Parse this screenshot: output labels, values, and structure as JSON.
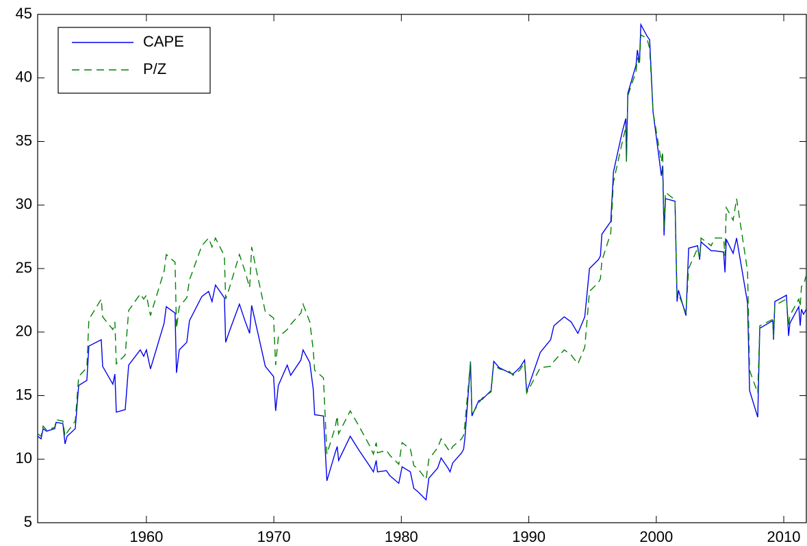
{
  "chart_data": {
    "type": "line",
    "x": [
      1951.47,
      1951.74,
      1951.9,
      1952.17,
      1952.81,
      1952.92,
      1953.45,
      1953.62,
      1953.78,
      1954.42,
      1954.69,
      1955.33,
      1955.49,
      1956.46,
      1956.57,
      1957.37,
      1957.53,
      1957.64,
      1958.34,
      1958.61,
      1959.52,
      1959.79,
      1960.0,
      1960.32,
      1961.39,
      1961.56,
      1962.25,
      1962.36,
      1962.58,
      1963.17,
      1963.38,
      1964.35,
      1964.88,
      1965.15,
      1965.42,
      1966.12,
      1966.22,
      1966.49,
      1967.3,
      1967.73,
      1968.1,
      1968.26,
      1968.64,
      1969.33,
      1969.98,
      1970.14,
      1970.35,
      1971.05,
      1971.32,
      1972.12,
      1972.29,
      1972.82,
      1973.09,
      1973.2,
      1973.89,
      1974.16,
      1974.81,
      1974.97,
      1975.08,
      1975.99,
      1976.68,
      1977.49,
      1977.81,
      1978.03,
      1978.13,
      1978.83,
      1979.1,
      1979.8,
      1980.06,
      1980.71,
      1980.98,
      1981.35,
      1981.94,
      1982.16,
      1982.85,
      1983.12,
      1983.66,
      1983.82,
      1984.03,
      1984.73,
      1984.89,
      1985.0,
      1985.43,
      1985.54,
      1986.07,
      1986.34,
      1987.04,
      1987.25,
      1987.68,
      1988.49,
      1988.76,
      1989.29,
      1989.67,
      1989.83,
      1990.9,
      1991.71,
      1991.97,
      1992.78,
      1993.32,
      1993.85,
      1994.39,
      1994.76,
      1995.46,
      1995.62,
      1995.73,
      1996.43,
      1996.64,
      1997.34,
      1997.61,
      1997.66,
      1997.77,
      1998.41,
      1998.52,
      1998.68,
      1998.79,
      1999.27,
      1999.48,
      1999.75,
      2000.4,
      2000.5,
      2000.61,
      2000.72,
      2001.47,
      2001.63,
      2001.74,
      2002.33,
      2002.54,
      2003.24,
      2003.4,
      2003.51,
      2004.31,
      2004.58,
      2005.28,
      2005.39,
      2005.49,
      2006.03,
      2006.3,
      2007.16,
      2007.32,
      2007.96,
      2008.12,
      2009.14,
      2009.2,
      2009.3,
      2010.21,
      2010.38,
      2010.48,
      2011.18,
      2011.29,
      2011.39,
      2011.55,
      2011.77
    ],
    "series": [
      {
        "name": "CAPE",
        "color": "#0000ee",
        "dash": false,
        "values": [
          11.8,
          11.6,
          12.4,
          12.2,
          12.4,
          12.9,
          12.8,
          11.2,
          11.8,
          12.4,
          15.8,
          16.2,
          18.9,
          19.4,
          17.3,
          15.9,
          16.7,
          13.7,
          13.9,
          17.4,
          18.6,
          18.1,
          18.6,
          17.1,
          20.7,
          22.0,
          21.5,
          16.8,
          18.6,
          19.2,
          20.9,
          22.8,
          23.2,
          22.4,
          23.7,
          22.7,
          19.2,
          20.0,
          22.2,
          20.9,
          19.9,
          22.1,
          20.4,
          17.3,
          16.5,
          13.8,
          15.8,
          17.4,
          16.6,
          17.8,
          18.6,
          17.6,
          15.5,
          13.5,
          13.4,
          8.3,
          10.5,
          11.0,
          9.9,
          11.8,
          10.7,
          9.5,
          9.0,
          9.9,
          9.0,
          9.1,
          8.7,
          8.1,
          9.4,
          9.0,
          7.7,
          7.4,
          6.8,
          8.5,
          9.3,
          10.1,
          9.3,
          9.0,
          9.7,
          10.5,
          10.8,
          11.8,
          17.6,
          13.4,
          14.6,
          14.7,
          15.4,
          17.7,
          17.2,
          16.8,
          16.7,
          17.2,
          17.8,
          15.3,
          18.4,
          19.4,
          20.5,
          21.2,
          20.8,
          19.9,
          21.2,
          25.0,
          25.7,
          26.0,
          27.7,
          28.7,
          32.6,
          35.8,
          36.8,
          33.5,
          38.8,
          41.0,
          42.2,
          41.2,
          44.2,
          43.3,
          43.0,
          37.3,
          32.3,
          33.1,
          27.6,
          30.5,
          30.3,
          22.4,
          23.3,
          21.3,
          26.6,
          26.8,
          25.7,
          27.1,
          26.4,
          26.4,
          26.3,
          24.7,
          27.3,
          26.2,
          27.4,
          22.3,
          15.4,
          13.3,
          20.3,
          20.9,
          19.4,
          22.4,
          22.9,
          19.7,
          20.7,
          22.0,
          20.5,
          21.8,
          21.4,
          21.8
        ]
      },
      {
        "name": "P/Z",
        "color": "#007f00",
        "dash": true,
        "values": [
          12.0,
          11.8,
          12.6,
          12.3,
          12.5,
          13.1,
          13.0,
          11.8,
          12.1,
          13.0,
          16.5,
          17.2,
          21.0,
          22.6,
          21.2,
          20.2,
          20.8,
          17.5,
          18.2,
          21.7,
          23.0,
          22.6,
          22.9,
          21.3,
          24.8,
          26.1,
          25.5,
          20.3,
          22.0,
          22.7,
          24.1,
          26.8,
          27.4,
          26.7,
          27.4,
          26.0,
          22.6,
          23.4,
          26.1,
          24.8,
          23.5,
          26.7,
          24.8,
          21.6,
          21.1,
          17.4,
          19.6,
          20.2,
          20.6,
          21.5,
          22.2,
          20.8,
          18.6,
          17.0,
          16.4,
          10.4,
          12.5,
          13.4,
          12.0,
          13.8,
          12.6,
          11.1,
          10.4,
          11.3,
          10.5,
          10.7,
          10.3,
          9.6,
          11.3,
          10.8,
          9.5,
          9.2,
          8.4,
          10.0,
          10.9,
          11.6,
          10.8,
          10.6,
          11.0,
          11.6,
          11.9,
          12.9,
          17.7,
          13.5,
          14.4,
          14.8,
          15.3,
          17.5,
          17.1,
          16.9,
          16.6,
          17.0,
          17.6,
          15.2,
          17.2,
          17.3,
          17.7,
          18.6,
          18.2,
          17.5,
          18.8,
          23.2,
          23.9,
          24.2,
          25.6,
          27.8,
          31.8,
          35.0,
          36.1,
          33.4,
          38.6,
          40.5,
          41.6,
          41.0,
          43.4,
          43.1,
          42.3,
          37.3,
          33.4,
          34.2,
          28.2,
          31.0,
          30.4,
          22.9,
          23.0,
          21.5,
          25.0,
          26.6,
          25.8,
          27.4,
          26.8,
          27.4,
          27.4,
          26.0,
          29.8,
          28.8,
          30.5,
          24.8,
          17.0,
          15.2,
          20.5,
          21.0,
          19.6,
          22.1,
          22.6,
          20.5,
          21.3,
          22.6,
          22.0,
          23.6,
          23.7,
          24.5
        ]
      }
    ],
    "xlim": [
      1951.47,
      2011.77
    ],
    "xticks": [
      1960,
      1970,
      1980,
      1990,
      2000,
      2010
    ],
    "ylim": [
      5,
      45
    ],
    "yticks": [
      5,
      10,
      15,
      20,
      25,
      30,
      35,
      40,
      45
    ],
    "legend": "upper-left"
  }
}
